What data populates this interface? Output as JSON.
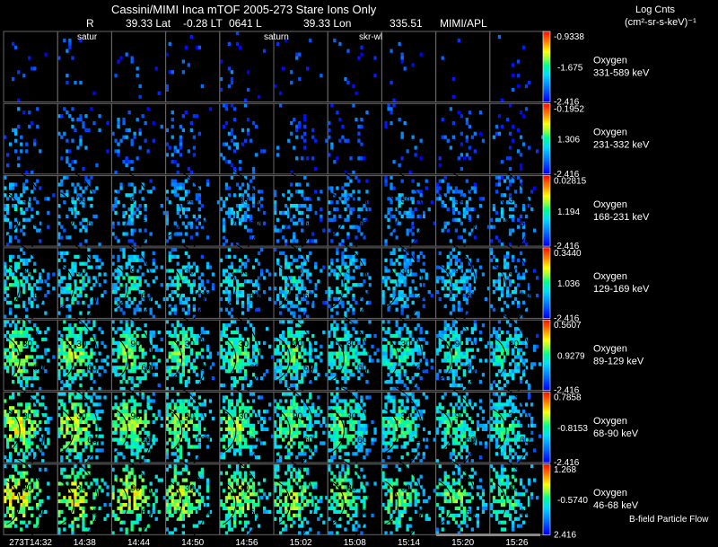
{
  "header": {
    "title": "Cassini/MIMI Inca mTOF  2005-273   Stare    Ions Only",
    "r_label": "R",
    "lat": "39.33 Lat",
    "lt": "-0.28 LT",
    "time_l": "0641 L",
    "lon": "39.33 Lon",
    "value2": "335.51",
    "lab": "MIMI/APL",
    "units_title": "Log Cnts",
    "units": "(cm²-sr-s-keV)⁻¹"
  },
  "markers": [
    "satur",
    "saturn",
    "skr-wl"
  ],
  "footer": {
    "flow_label": "B-field Particle Flow"
  },
  "chart_data": {
    "type": "heatmap",
    "title": "Cassini/MIMI Inca mTOF 2005-273 Stare Ions Only",
    "x_tick_labels": [
      "273T14:32",
      "14:38",
      "14:44",
      "14:50",
      "14:56",
      "15:02",
      "15:08",
      "15:14",
      "15:20",
      "15:26"
    ],
    "colormap": "rainbow (blue=low, red=high)",
    "rows": [
      {
        "species": "Oxygen",
        "energy": "331-589 keV",
        "cbar_max": "-0.9338",
        "cbar_mid": "-1.675",
        "cbar_min": "-2.416",
        "density": 0.06,
        "level": 0.15
      },
      {
        "species": "Oxygen",
        "energy": "231-332 keV",
        "cbar_max": "-0.1952",
        "cbar_mid": "1.306",
        "cbar_min": "-2.416",
        "density": 0.16,
        "level": 0.22
      },
      {
        "species": "Oxygen",
        "energy": "168-231 keV",
        "cbar_max": "0.02815",
        "cbar_mid": "1.194",
        "cbar_min": "-2.416",
        "density": 0.38,
        "level": 0.36
      },
      {
        "species": "Oxygen",
        "energy": "129-169 keV",
        "cbar_max": "0.3440",
        "cbar_mid": "1.036",
        "cbar_min": "-2.416",
        "density": 0.55,
        "level": 0.48
      },
      {
        "species": "Oxygen",
        "energy": "89-129 keV",
        "cbar_max": "0.5607",
        "cbar_mid": "0.9279",
        "cbar_min": "-2.416",
        "density": 0.75,
        "level": 0.62
      },
      {
        "species": "Oxygen",
        "energy": "68-90 keV",
        "cbar_max": "0.7858",
        "cbar_mid": "-0.8153",
        "cbar_min": "-2.416",
        "density": 0.78,
        "level": 0.68
      },
      {
        "species": "Oxygen",
        "energy": "46-68 keV",
        "cbar_max": "1.268",
        "cbar_mid": "-0.5740",
        "cbar_min": "2.416",
        "density": 0.62,
        "level": 0.74
      }
    ],
    "contour_labels": [
      "30",
      "60",
      "90",
      "120"
    ]
  }
}
